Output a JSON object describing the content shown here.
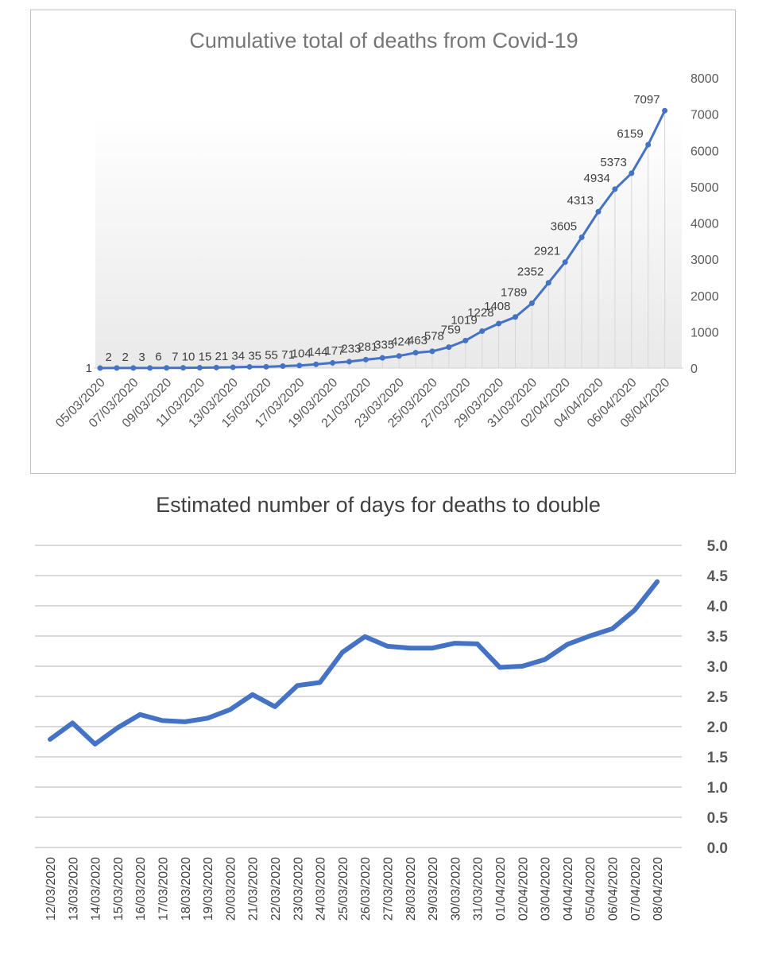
{
  "chart_data": [
    {
      "type": "line",
      "title": "Cumulative total of deaths from Covid-19",
      "xlabel": "",
      "ylabel": "",
      "ylim": [
        0,
        8000
      ],
      "yticks": [
        "0",
        "1000",
        "2000",
        "3000",
        "4000",
        "5000",
        "6000",
        "7000",
        "8000"
      ],
      "y_axis_position": "right",
      "markers": true,
      "data_labels": true,
      "grid": false,
      "line_color": "#4472c4",
      "x": [
        "05/03/2020",
        "06/03/2020",
        "07/03/2020",
        "08/03/2020",
        "09/03/2020",
        "10/03/2020",
        "11/03/2020",
        "12/03/2020",
        "13/03/2020",
        "14/03/2020",
        "15/03/2020",
        "16/03/2020",
        "17/03/2020",
        "18/03/2020",
        "19/03/2020",
        "20/03/2020",
        "21/03/2020",
        "22/03/2020",
        "23/03/2020",
        "24/03/2020",
        "25/03/2020",
        "26/03/2020",
        "27/03/2020",
        "28/03/2020",
        "29/03/2020",
        "30/03/2020",
        "31/03/2020",
        "01/04/2020",
        "02/04/2020",
        "03/04/2020",
        "04/04/2020",
        "05/04/2020",
        "06/04/2020",
        "07/04/2020",
        "08/04/2020"
      ],
      "x_tick_labels": [
        "05/03/2020",
        "07/03/2020",
        "09/03/2020",
        "11/03/2020",
        "13/03/2020",
        "15/03/2020",
        "17/03/2020",
        "19/03/2020",
        "21/03/2020",
        "23/03/2020",
        "25/03/2020",
        "27/03/2020",
        "29/03/2020",
        "31/03/2020",
        "02/04/2020",
        "04/04/2020",
        "06/04/2020",
        "08/04/2020"
      ],
      "series": [
        {
          "values": [
            1,
            2,
            2,
            3,
            6,
            7,
            10,
            15,
            21,
            34,
            35,
            55,
            71,
            104,
            144,
            177,
            233,
            281,
            335,
            424,
            463,
            578,
            759,
            1019,
            1228,
            1408,
            1789,
            2352,
            2921,
            3605,
            4313,
            4934,
            5373,
            6159,
            7097
          ]
        }
      ]
    },
    {
      "type": "line",
      "title": "Estimated number of days for deaths to double",
      "xlabel": "",
      "ylabel": "",
      "ylim": [
        0,
        5
      ],
      "yticks": [
        "0.0",
        "0.5",
        "1.0",
        "1.5",
        "2.0",
        "2.5",
        "3.0",
        "3.5",
        "4.0",
        "4.5",
        "5.0"
      ],
      "y_axis_position": "right",
      "grid": true,
      "line_color": "#4472c4",
      "x": [
        "12/03/2020",
        "13/03/2020",
        "14/03/2020",
        "15/03/2020",
        "16/03/2020",
        "17/03/2020",
        "18/03/2020",
        "19/03/2020",
        "20/03/2020",
        "21/03/2020",
        "22/03/2020",
        "23/03/2020",
        "24/03/2020",
        "25/03/2020",
        "26/03/2020",
        "27/03/2020",
        "28/03/2020",
        "29/03/2020",
        "30/03/2020",
        "31/03/2020",
        "01/04/2020",
        "02/04/2020",
        "03/04/2020",
        "04/04/2020",
        "05/04/2020",
        "06/04/2020",
        "07/04/2020",
        "08/04/2020"
      ],
      "series": [
        {
          "values": [
            1.79,
            2.06,
            1.71,
            1.98,
            2.2,
            2.1,
            2.08,
            2.14,
            2.28,
            2.53,
            2.33,
            2.68,
            2.73,
            3.23,
            3.49,
            3.33,
            3.3,
            3.3,
            3.38,
            3.37,
            2.98,
            3.0,
            3.11,
            3.36,
            3.5,
            3.62,
            3.93,
            4.4
          ]
        }
      ]
    }
  ]
}
